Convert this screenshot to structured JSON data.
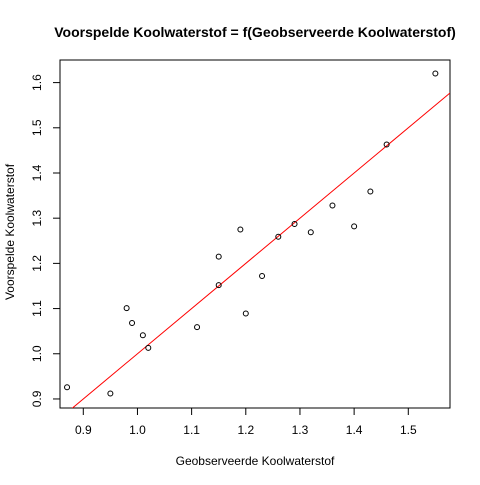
{
  "chart_data": {
    "type": "scatter",
    "title": "Voorspelde Koolwaterstof = f(Geobserveerde Koolwaterstof)",
    "xlabel": "Geobserveerde Koolwaterstof",
    "ylabel": "Voorspelde Koolwaterstof",
    "xlim": [
      0.857,
      1.577
    ],
    "ylim": [
      0.88,
      1.65
    ],
    "xticks": [
      0.9,
      1.0,
      1.1,
      1.2,
      1.3,
      1.4,
      1.5
    ],
    "yticks": [
      0.9,
      1.0,
      1.1,
      1.2,
      1.3,
      1.4,
      1.5,
      1.6
    ],
    "xtick_labels": [
      "0.9",
      "1.0",
      "1.1",
      "1.2",
      "1.3",
      "1.4",
      "1.5"
    ],
    "ytick_labels": [
      "0.9",
      "1.0",
      "1.1",
      "1.2",
      "1.3",
      "1.4",
      "1.5",
      "1.6"
    ],
    "grid": false,
    "points": [
      {
        "x": 0.87,
        "y": 0.926
      },
      {
        "x": 0.95,
        "y": 0.912
      },
      {
        "x": 0.98,
        "y": 1.101
      },
      {
        "x": 0.99,
        "y": 1.068
      },
      {
        "x": 1.01,
        "y": 1.041
      },
      {
        "x": 1.02,
        "y": 1.013
      },
      {
        "x": 1.11,
        "y": 1.059
      },
      {
        "x": 1.15,
        "y": 1.152
      },
      {
        "x": 1.15,
        "y": 1.215
      },
      {
        "x": 1.19,
        "y": 1.275
      },
      {
        "x": 1.2,
        "y": 1.089
      },
      {
        "x": 1.23,
        "y": 1.172
      },
      {
        "x": 1.26,
        "y": 1.259
      },
      {
        "x": 1.29,
        "y": 1.287
      },
      {
        "x": 1.32,
        "y": 1.269
      },
      {
        "x": 1.36,
        "y": 1.328
      },
      {
        "x": 1.4,
        "y": 1.282
      },
      {
        "x": 1.43,
        "y": 1.359
      },
      {
        "x": 1.46,
        "y": 1.463
      },
      {
        "x": 1.55,
        "y": 1.62
      }
    ],
    "reference_line": {
      "slope": 1,
      "intercept": 0,
      "color": "#ff0000"
    },
    "marker_color": "#000000"
  }
}
